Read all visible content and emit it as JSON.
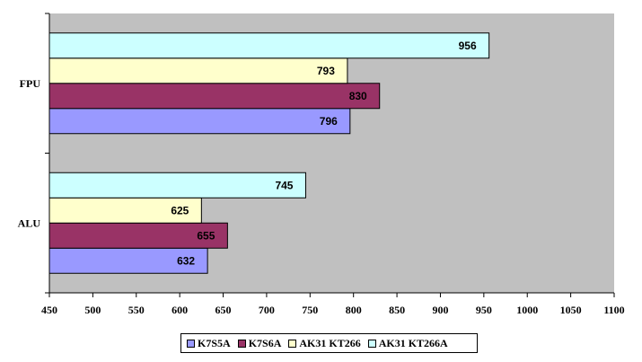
{
  "chart_data": {
    "type": "bar",
    "orientation": "horizontal",
    "title": "",
    "xlabel": "",
    "ylabel": "",
    "categories": [
      "ALU",
      "FPU"
    ],
    "series": [
      {
        "name": "K7S5A",
        "color": "#9999ff",
        "values": [
          632,
          796
        ]
      },
      {
        "name": "K7S6A",
        "color": "#993366",
        "values": [
          655,
          830
        ]
      },
      {
        "name": "AK31 KT266",
        "color": "#ffffcc",
        "values": [
          625,
          793
        ]
      },
      {
        "name": "AK31 KT266A",
        "color": "#ccffff",
        "values": [
          745,
          956
        ]
      }
    ],
    "xlim": [
      450,
      1100
    ],
    "xticks": [
      "450",
      "500",
      "550",
      "600",
      "650",
      "700",
      "750",
      "800",
      "850",
      "900",
      "950",
      "1000",
      "1050",
      "1100"
    ],
    "plot_background": "#c0c0c0",
    "grid": false,
    "data_labels": true,
    "legend_position": "bottom"
  }
}
